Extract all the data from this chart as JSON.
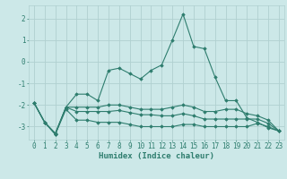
{
  "x": [
    0,
    1,
    2,
    3,
    4,
    5,
    6,
    7,
    8,
    9,
    10,
    11,
    12,
    13,
    14,
    15,
    16,
    17,
    18,
    19,
    20,
    21,
    22,
    23
  ],
  "line1": [
    -1.9,
    -2.8,
    -3.3,
    -2.1,
    -1.5,
    -1.5,
    -1.8,
    -0.4,
    -0.3,
    -0.55,
    -0.8,
    -0.4,
    -0.15,
    1.0,
    2.2,
    0.7,
    0.6,
    -0.7,
    -1.8,
    -1.8,
    -2.6,
    -2.8,
    -3.05,
    -3.2
  ],
  "line2": [
    -1.9,
    -2.8,
    -3.35,
    -2.1,
    -2.1,
    -2.1,
    -2.1,
    -2.0,
    -2.0,
    -2.1,
    -2.2,
    -2.2,
    -2.2,
    -2.1,
    -2.0,
    -2.1,
    -2.3,
    -2.3,
    -2.2,
    -2.2,
    -2.4,
    -2.5,
    -2.7,
    -3.2
  ],
  "line3": [
    -1.9,
    -2.8,
    -3.35,
    -2.1,
    -2.3,
    -2.3,
    -2.3,
    -2.3,
    -2.25,
    -2.35,
    -2.45,
    -2.45,
    -2.5,
    -2.5,
    -2.4,
    -2.5,
    -2.65,
    -2.65,
    -2.65,
    -2.65,
    -2.65,
    -2.65,
    -2.85,
    -3.2
  ],
  "line4": [
    -1.9,
    -2.8,
    -3.35,
    -2.2,
    -2.7,
    -2.7,
    -2.8,
    -2.8,
    -2.8,
    -2.9,
    -3.0,
    -3.0,
    -3.0,
    -3.0,
    -2.9,
    -2.9,
    -3.0,
    -3.0,
    -3.0,
    -3.0,
    -3.0,
    -2.85,
    -3.0,
    -3.2
  ],
  "color": "#2e7d6e",
  "bg_color": "#cce8e8",
  "grid_color": "#b0d0d0",
  "xlabel": "Humidex (Indice chaleur)",
  "ylim": [
    -3.6,
    2.6
  ],
  "xlim": [
    -0.5,
    23.5
  ],
  "yticks": [
    -3,
    -2,
    -1,
    0,
    1,
    2
  ],
  "xticks": [
    0,
    1,
    2,
    3,
    4,
    5,
    6,
    7,
    8,
    9,
    10,
    11,
    12,
    13,
    14,
    15,
    16,
    17,
    18,
    19,
    20,
    21,
    22,
    23
  ],
  "tick_fontsize": 5.5,
  "xlabel_fontsize": 6.5,
  "linewidth": 0.8,
  "markersize": 1.8
}
